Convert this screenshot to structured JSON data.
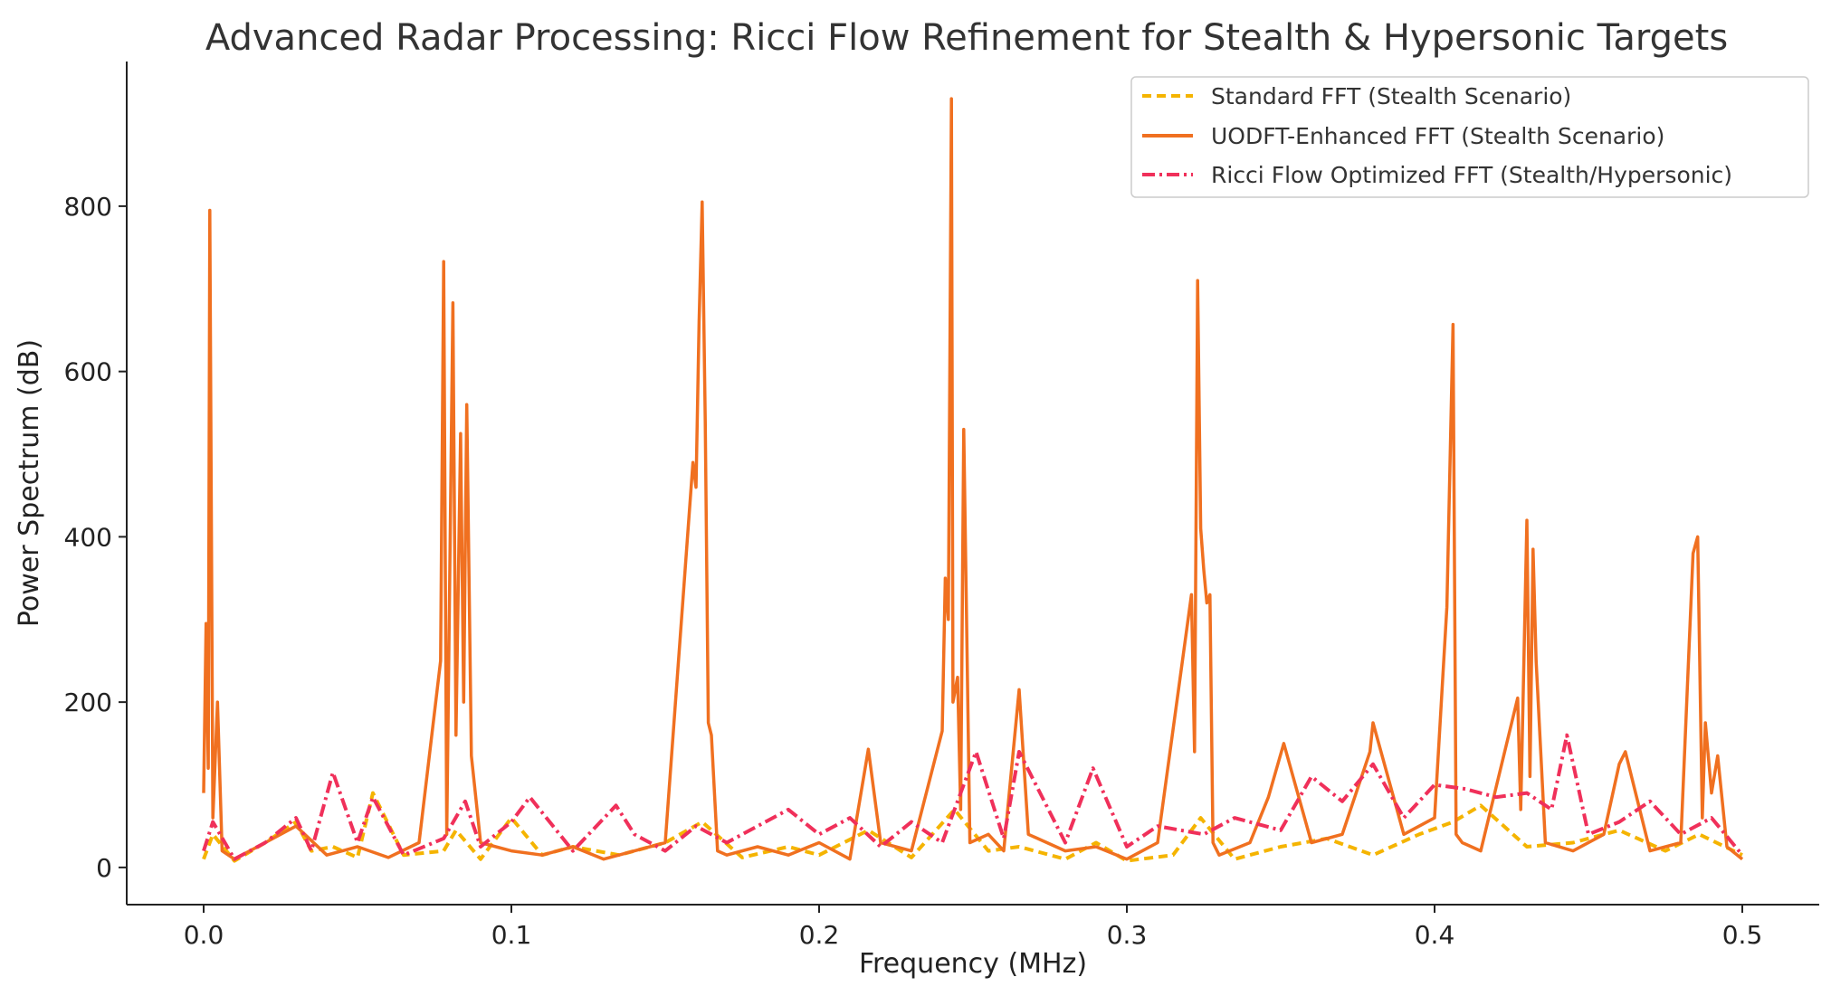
{
  "chart_data": {
    "type": "line",
    "title": "Advanced Radar Processing: Ricci Flow Refinement for Stealth & Hypersonic Targets",
    "xlabel": "Frequency (MHz)",
    "ylabel": "Power Spectrum (dB)",
    "xlim": [
      -0.025,
      0.525
    ],
    "ylim": [
      -45,
      975
    ],
    "x_ticks": [
      0.0,
      0.1,
      0.2,
      0.3,
      0.4,
      0.5
    ],
    "x_tick_labels": [
      "0.0",
      "0.1",
      "0.2",
      "0.3",
      "0.4",
      "0.5"
    ],
    "y_ticks": [
      0,
      200,
      400,
      600,
      800
    ],
    "y_tick_labels": [
      "0",
      "200",
      "400",
      "600",
      "800"
    ],
    "grid": false,
    "legend_position": "top-right",
    "series": [
      {
        "name": "Standard FFT (Stealth Scenario)",
        "color": "#f5b400",
        "style": "dashed",
        "x": [
          0.0,
          0.003,
          0.01,
          0.02,
          0.03,
          0.035,
          0.042,
          0.05,
          0.055,
          0.065,
          0.078,
          0.082,
          0.09,
          0.1,
          0.11,
          0.12,
          0.135,
          0.15,
          0.162,
          0.175,
          0.19,
          0.2,
          0.216,
          0.23,
          0.244,
          0.255,
          0.265,
          0.28,
          0.29,
          0.3,
          0.315,
          0.324,
          0.335,
          0.35,
          0.365,
          0.38,
          0.395,
          0.406,
          0.415,
          0.43,
          0.445,
          0.46,
          0.475,
          0.486,
          0.5
        ],
        "values": [
          10,
          40,
          8,
          30,
          55,
          20,
          25,
          12,
          90,
          15,
          20,
          45,
          10,
          60,
          15,
          25,
          15,
          30,
          55,
          12,
          25,
          15,
          45,
          12,
          70,
          20,
          25,
          10,
          30,
          8,
          15,
          60,
          10,
          25,
          35,
          15,
          40,
          55,
          75,
          25,
          30,
          45,
          20,
          40,
          15
        ]
      },
      {
        "name": "UODFT-Enhanced FFT (Stealth Scenario)",
        "color": "#f07020",
        "style": "solid",
        "x": [
          0.0,
          0.0008,
          0.0015,
          0.002,
          0.003,
          0.0045,
          0.006,
          0.01,
          0.02,
          0.03,
          0.04,
          0.05,
          0.06,
          0.07,
          0.077,
          0.078,
          0.079,
          0.081,
          0.082,
          0.0835,
          0.0845,
          0.0855,
          0.087,
          0.09,
          0.1,
          0.11,
          0.12,
          0.13,
          0.14,
          0.15,
          0.159,
          0.16,
          0.161,
          0.162,
          0.163,
          0.164,
          0.165,
          0.167,
          0.17,
          0.18,
          0.19,
          0.2,
          0.21,
          0.216,
          0.22,
          0.23,
          0.24,
          0.241,
          0.242,
          0.243,
          0.2435,
          0.245,
          0.246,
          0.247,
          0.249,
          0.255,
          0.26,
          0.265,
          0.268,
          0.28,
          0.29,
          0.3,
          0.31,
          0.321,
          0.322,
          0.323,
          0.324,
          0.325,
          0.326,
          0.327,
          0.328,
          0.33,
          0.34,
          0.346,
          0.351,
          0.36,
          0.37,
          0.379,
          0.38,
          0.39,
          0.4,
          0.404,
          0.406,
          0.407,
          0.409,
          0.415,
          0.427,
          0.428,
          0.43,
          0.431,
          0.432,
          0.433,
          0.436,
          0.445,
          0.455,
          0.46,
          0.462,
          0.47,
          0.48,
          0.484,
          0.4855,
          0.487,
          0.488,
          0.49,
          0.492,
          0.495,
          0.5
        ],
        "values": [
          90,
          295,
          120,
          795,
          60,
          200,
          20,
          10,
          30,
          50,
          15,
          25,
          12,
          30,
          250,
          733,
          40,
          683,
          160,
          525,
          200,
          560,
          135,
          30,
          20,
          15,
          25,
          10,
          20,
          30,
          490,
          460,
          660,
          805,
          540,
          175,
          160,
          20,
          15,
          25,
          15,
          30,
          10,
          143,
          30,
          20,
          165,
          350,
          300,
          930,
          200,
          230,
          70,
          530,
          30,
          40,
          20,
          215,
          40,
          20,
          25,
          10,
          30,
          330,
          140,
          710,
          410,
          360,
          320,
          330,
          30,
          15,
          30,
          85,
          150,
          30,
          40,
          140,
          175,
          40,
          60,
          315,
          657,
          40,
          30,
          20,
          205,
          70,
          420,
          110,
          385,
          250,
          30,
          20,
          40,
          125,
          140,
          20,
          30,
          380,
          400,
          60,
          175,
          90,
          135,
          25,
          10
        ]
      },
      {
        "name": "Ricci Flow Optimized FFT (Stealth/Hypersonic)",
        "color": "#f0305a",
        "style": "dashdot",
        "x": [
          0.0,
          0.003,
          0.01,
          0.02,
          0.03,
          0.035,
          0.042,
          0.05,
          0.055,
          0.065,
          0.078,
          0.085,
          0.09,
          0.1,
          0.106,
          0.12,
          0.134,
          0.14,
          0.15,
          0.16,
          0.17,
          0.19,
          0.2,
          0.21,
          0.22,
          0.23,
          0.24,
          0.246,
          0.251,
          0.26,
          0.265,
          0.28,
          0.289,
          0.3,
          0.31,
          0.325,
          0.335,
          0.35,
          0.36,
          0.37,
          0.38,
          0.39,
          0.4,
          0.41,
          0.42,
          0.43,
          0.438,
          0.443,
          0.45,
          0.46,
          0.47,
          0.48,
          0.49,
          0.5
        ],
        "values": [
          20,
          55,
          10,
          30,
          60,
          20,
          115,
          30,
          85,
          15,
          35,
          80,
          25,
          55,
          85,
          20,
          75,
          40,
          20,
          50,
          30,
          70,
          40,
          60,
          25,
          55,
          30,
          90,
          140,
          35,
          140,
          30,
          120,
          25,
          50,
          40,
          60,
          45,
          110,
          80,
          125,
          60,
          100,
          95,
          85,
          90,
          70,
          160,
          40,
          55,
          80,
          40,
          60,
          15
        ]
      }
    ]
  }
}
